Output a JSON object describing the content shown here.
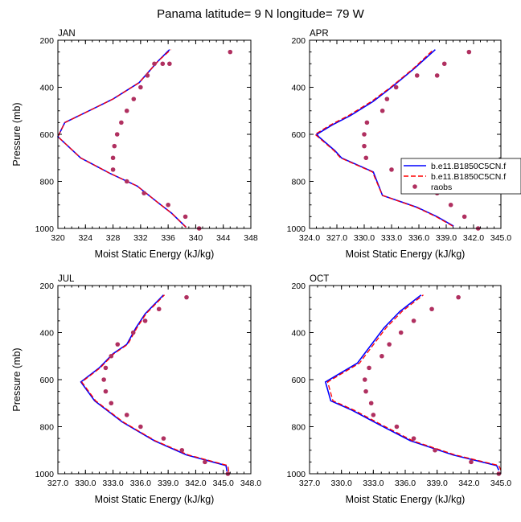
{
  "title": "Panama  latitude= 9 N longitude= 79 W",
  "colors": {
    "model1": "#0000ff",
    "model2": "#ff0000",
    "raobs": "#b03060",
    "axis": "#000000",
    "background": "#ffffff"
  },
  "legend": {
    "placement": "right of APR panel",
    "entries": [
      {
        "label": "b.e11.B1850C5CN.f",
        "style": "solid-line",
        "color": "#0000ff"
      },
      {
        "label": "b.e11.B1850C5CN.f",
        "style": "dashed-line",
        "color": "#ff0000"
      },
      {
        "label": "raobs",
        "style": "marker",
        "color": "#b03060"
      }
    ]
  },
  "chart_data": [
    {
      "type": "line",
      "panel": "JAN",
      "xlabel": "Moist Static Energy (kJ/kg)",
      "ylabel": "Pressure (mb)",
      "xlim": [
        320,
        348
      ],
      "ylim": [
        1000,
        200
      ],
      "y_reversed": true,
      "xticks": [
        320,
        324,
        328,
        332,
        336,
        340,
        344,
        348
      ],
      "xtick_labels": [
        "320",
        "324",
        "328",
        "332",
        "336",
        "340",
        "344",
        "348"
      ],
      "yticks": [
        200,
        400,
        600,
        800,
        1000
      ],
      "ytick_labels": [
        "200",
        "400",
        "600",
        "800",
        "1000"
      ],
      "series": [
        {
          "name": "b.e11.B1850C5CN.f",
          "style": "solid",
          "x": [
            338.6,
            336.5,
            334.5,
            331.5,
            327.5,
            323.3,
            320.0,
            321.0,
            324.5,
            328.0,
            331.8,
            334.5,
            336.2
          ],
          "y": [
            995,
            935,
            890,
            820,
            765,
            700,
            610,
            550,
            500,
            450,
            380,
            290,
            240
          ]
        },
        {
          "name": "b.e11.B1850C5CN.f",
          "style": "dashed",
          "x": [
            338.6,
            336.5,
            334.5,
            331.5,
            327.5,
            323.3,
            320.0,
            321.0,
            324.5,
            328.0,
            331.8,
            334.5,
            336.4
          ],
          "y": [
            995,
            935,
            890,
            820,
            765,
            700,
            610,
            550,
            500,
            450,
            380,
            290,
            240
          ]
        },
        {
          "name": "raobs",
          "style": "markers",
          "x": [
            340.5,
            338.5,
            336.0,
            332.5,
            330.0,
            328.0,
            328.0,
            328.2,
            328.6,
            329.2,
            330.0,
            331.0,
            332.0,
            333.0,
            334.0,
            335.2,
            336.2,
            345.0
          ],
          "y": [
            1000,
            950,
            900,
            850,
            800,
            750,
            700,
            650,
            600,
            550,
            500,
            450,
            400,
            350,
            300,
            300,
            300,
            250
          ]
        }
      ]
    },
    {
      "type": "line",
      "panel": "APR",
      "xlabel": "Moist Static Energy (kJ/kg)",
      "ylabel": "",
      "xlim": [
        324,
        345
      ],
      "ylim": [
        1000,
        200
      ],
      "y_reversed": true,
      "xticks": [
        324,
        327,
        330,
        333,
        336,
        339,
        342,
        345
      ],
      "xtick_labels": [
        "324.0",
        "327.0",
        "330.0",
        "333.0",
        "336.0",
        "339.0",
        "342.0",
        "345.0"
      ],
      "yticks": [
        200,
        400,
        600,
        800,
        1000
      ],
      "ytick_labels": [
        "200",
        "400",
        "600",
        "800",
        "1000"
      ],
      "series": [
        {
          "name": "b.e11.B1850C5CN.f",
          "style": "solid",
          "x": [
            339.8,
            338.0,
            335.8,
            332.0,
            331.0,
            327.5,
            326.8,
            325.0,
            324.8,
            326.5,
            328.5,
            331.0,
            333.0,
            335.5,
            337.8
          ],
          "y": [
            990,
            950,
            910,
            860,
            760,
            700,
            670,
            610,
            600,
            560,
            520,
            460,
            400,
            320,
            240
          ]
        },
        {
          "name": "b.e11.B1850C5CN.f",
          "style": "dashed",
          "x": [
            339.7,
            337.9,
            335.7,
            332.0,
            330.9,
            327.4,
            326.7,
            324.9,
            324.6,
            326.3,
            328.3,
            330.8,
            332.9,
            335.4,
            337.6
          ],
          "y": [
            990,
            950,
            910,
            860,
            760,
            700,
            670,
            610,
            600,
            560,
            520,
            460,
            400,
            320,
            240
          ]
        },
        {
          "name": "raobs",
          "style": "markers",
          "x": [
            342.5,
            341.0,
            339.5,
            338.0,
            334.5,
            333.0,
            330.2,
            330.0,
            330.0,
            330.3,
            332.0,
            332.5,
            333.5,
            335.8,
            338.0,
            338.8,
            341.5
          ],
          "y": [
            1000,
            950,
            900,
            850,
            800,
            750,
            700,
            650,
            600,
            550,
            500,
            450,
            400,
            350,
            350,
            300,
            250
          ]
        }
      ]
    },
    {
      "type": "line",
      "panel": "JUL",
      "xlabel": "Moist Static Energy (kJ/kg)",
      "ylabel": "Pressure (mb)",
      "xlim": [
        327,
        348
      ],
      "ylim": [
        1000,
        200
      ],
      "y_reversed": true,
      "xticks": [
        327,
        330,
        333,
        336,
        339,
        342,
        345,
        348
      ],
      "xtick_labels": [
        "327.0",
        "330.0",
        "333.0",
        "336.0",
        "339.0",
        "342.0",
        "345.0",
        "348.0"
      ],
      "yticks": [
        200,
        400,
        600,
        800,
        1000
      ],
      "ytick_labels": [
        "200",
        "400",
        "600",
        "800",
        "1000"
      ],
      "series": [
        {
          "name": "b.e11.B1850C5CN.f",
          "style": "solid",
          "x": [
            345.4,
            345.3,
            341.0,
            337.5,
            334.0,
            331.0,
            329.5,
            331.5,
            333.0,
            334.5,
            335.5,
            336.5,
            338.5
          ],
          "y": [
            990,
            965,
            920,
            860,
            780,
            690,
            610,
            550,
            490,
            450,
            380,
            320,
            240
          ]
        },
        {
          "name": "b.e11.B1850C5CN.f",
          "style": "dashed",
          "x": [
            345.6,
            345.5,
            341.2,
            337.6,
            334.1,
            331.1,
            329.6,
            331.6,
            333.1,
            334.6,
            335.6,
            336.6,
            338.6
          ],
          "y": [
            990,
            965,
            920,
            860,
            780,
            690,
            610,
            550,
            490,
            450,
            380,
            320,
            240
          ]
        },
        {
          "name": "raobs",
          "style": "markers",
          "x": [
            345.5,
            343.0,
            340.5,
            338.5,
            336.0,
            334.5,
            332.8,
            332.2,
            332.0,
            332.2,
            332.8,
            333.5,
            335.2,
            336.5,
            338.0,
            341.0
          ],
          "y": [
            1000,
            950,
            900,
            850,
            800,
            750,
            700,
            650,
            600,
            550,
            500,
            450,
            400,
            350,
            300,
            250
          ]
        }
      ]
    },
    {
      "type": "line",
      "panel": "OCT",
      "xlabel": "Moist Static Energy (kJ/kg)",
      "ylabel": "",
      "xlim": [
        327,
        345
      ],
      "ylim": [
        1000,
        200
      ],
      "y_reversed": true,
      "xticks": [
        327,
        330,
        333,
        336,
        339,
        342,
        345
      ],
      "xtick_labels": [
        "327.0",
        "330.0",
        "333.0",
        "336.0",
        "339.0",
        "342.0",
        "345.0"
      ],
      "yticks": [
        200,
        400,
        600,
        800,
        1000
      ],
      "ytick_labels": [
        "200",
        "400",
        "600",
        "800",
        "1000"
      ],
      "series": [
        {
          "name": "b.e11.B1850C5CN.f",
          "style": "solid",
          "x": [
            344.8,
            344.6,
            340.5,
            336.5,
            333.5,
            331.0,
            329.0,
            328.5,
            331.5,
            334.0,
            335.5,
            337.5
          ],
          "y": [
            985,
            965,
            920,
            860,
            790,
            730,
            690,
            610,
            530,
            380,
            310,
            240
          ]
        },
        {
          "name": "b.e11.B1850C5CN.f",
          "style": "dashed",
          "x": [
            345.0,
            344.8,
            340.7,
            336.7,
            333.7,
            331.2,
            329.2,
            328.7,
            331.7,
            334.2,
            335.7,
            337.7
          ],
          "y": [
            985,
            965,
            920,
            860,
            790,
            730,
            690,
            610,
            530,
            380,
            310,
            240
          ]
        },
        {
          "name": "raobs",
          "style": "markers",
          "x": [
            344.8,
            342.2,
            338.8,
            336.8,
            335.2,
            333.0,
            332.8,
            332.3,
            332.2,
            332.6,
            333.8,
            334.5,
            335.6,
            336.8,
            338.5,
            341.0
          ],
          "y": [
            1000,
            950,
            900,
            850,
            800,
            750,
            700,
            650,
            600,
            550,
            500,
            450,
            400,
            350,
            300,
            250
          ]
        }
      ]
    }
  ]
}
